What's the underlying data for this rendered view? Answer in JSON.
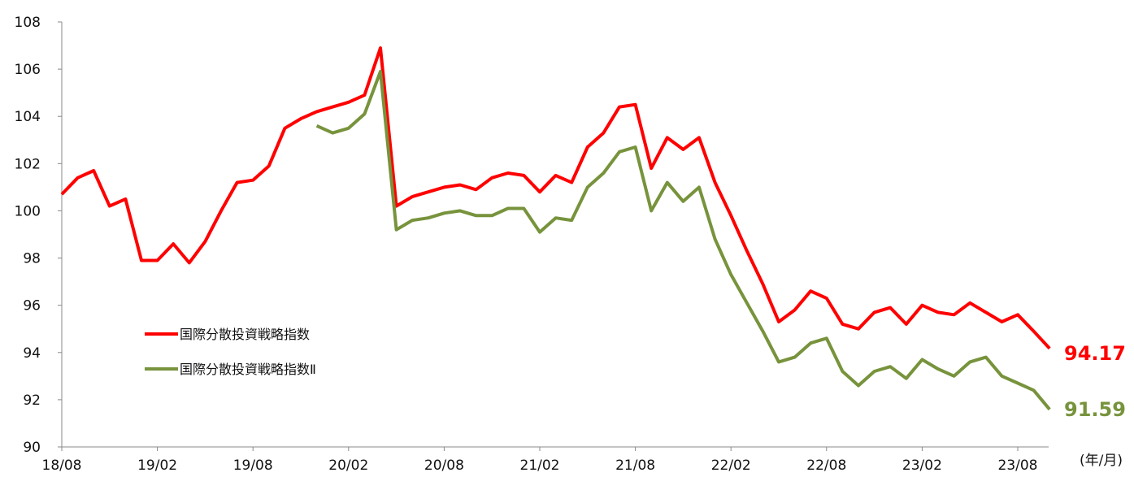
{
  "chart_data": {
    "type": "line",
    "x_unit_label": "(年/月)",
    "x_ticks": [
      "18/08",
      "19/02",
      "19/08",
      "20/02",
      "20/08",
      "21/02",
      "21/08",
      "22/02",
      "22/08",
      "23/02",
      "23/08"
    ],
    "ylim": [
      90,
      108
    ],
    "y_ticks": [
      90,
      92,
      94,
      96,
      98,
      100,
      102,
      104,
      106,
      108
    ],
    "grid": false,
    "legend_position": "lower-left",
    "series": [
      {
        "name": "国際分散投資戦略指数",
        "color": "#ff0000",
        "last_value_label": "94.17",
        "points": [
          [
            "18/08",
            100.7
          ],
          [
            "18/09",
            101.4
          ],
          [
            "18/10",
            101.7
          ],
          [
            "18/11",
            100.2
          ],
          [
            "18/12",
            100.5
          ],
          [
            "19/01",
            97.9
          ],
          [
            "19/02",
            97.9
          ],
          [
            "19/03",
            98.6
          ],
          [
            "19/04",
            97.8
          ],
          [
            "19/05",
            98.7
          ],
          [
            "19/06",
            100.0
          ],
          [
            "19/07",
            101.2
          ],
          [
            "19/08",
            101.3
          ],
          [
            "19/09",
            101.9
          ],
          [
            "19/10",
            103.5
          ],
          [
            "19/11",
            103.9
          ],
          [
            "19/12",
            104.2
          ],
          [
            "20/01",
            104.4
          ],
          [
            "20/02",
            104.6
          ],
          [
            "20/03",
            104.9
          ],
          [
            "20/04",
            106.9
          ],
          [
            "20/05",
            100.2
          ],
          [
            "20/06",
            100.6
          ],
          [
            "20/07",
            100.8
          ],
          [
            "20/08",
            101.0
          ],
          [
            "20/09",
            101.1
          ],
          [
            "20/10",
            100.9
          ],
          [
            "20/11",
            101.4
          ],
          [
            "20/12",
            101.6
          ],
          [
            "21/01",
            101.5
          ],
          [
            "21/02",
            100.8
          ],
          [
            "21/03",
            101.5
          ],
          [
            "21/04",
            101.2
          ],
          [
            "21/05",
            102.7
          ],
          [
            "21/06",
            103.3
          ],
          [
            "21/07",
            104.4
          ],
          [
            "21/08",
            104.5
          ],
          [
            "21/09",
            101.8
          ],
          [
            "21/10",
            103.1
          ],
          [
            "21/11",
            102.6
          ],
          [
            "21/12",
            103.1
          ],
          [
            "22/01",
            101.2
          ],
          [
            "22/02",
            99.8
          ],
          [
            "22/03",
            98.3
          ],
          [
            "22/04",
            96.9
          ],
          [
            "22/05",
            95.3
          ],
          [
            "22/06",
            95.8
          ],
          [
            "22/07",
            96.6
          ],
          [
            "22/08",
            96.3
          ],
          [
            "22/09",
            95.2
          ],
          [
            "22/10",
            95.0
          ],
          [
            "22/11",
            95.7
          ],
          [
            "22/12",
            95.9
          ],
          [
            "23/01",
            95.2
          ],
          [
            "23/02",
            96.0
          ],
          [
            "23/03",
            95.7
          ],
          [
            "23/04",
            95.6
          ],
          [
            "23/05",
            96.1
          ],
          [
            "23/06",
            95.7
          ],
          [
            "23/07",
            95.3
          ],
          [
            "23/08",
            95.6
          ],
          [
            "23/09",
            94.9
          ],
          [
            "23/10",
            94.17
          ]
        ]
      },
      {
        "name": "国際分散投資戦略指数Ⅱ",
        "color": "#77933c",
        "last_value_label": "91.59",
        "points": [
          [
            "19/12",
            103.6
          ],
          [
            "20/01",
            103.3
          ],
          [
            "20/02",
            103.5
          ],
          [
            "20/03",
            104.1
          ],
          [
            "20/04",
            105.9
          ],
          [
            "20/05",
            99.2
          ],
          [
            "20/06",
            99.6
          ],
          [
            "20/07",
            99.7
          ],
          [
            "20/08",
            99.9
          ],
          [
            "20/09",
            100.0
          ],
          [
            "20/10",
            99.8
          ],
          [
            "20/11",
            99.8
          ],
          [
            "20/12",
            100.1
          ],
          [
            "21/01",
            100.1
          ],
          [
            "21/02",
            99.1
          ],
          [
            "21/03",
            99.7
          ],
          [
            "21/04",
            99.6
          ],
          [
            "21/05",
            101.0
          ],
          [
            "21/06",
            101.6
          ],
          [
            "21/07",
            102.5
          ],
          [
            "21/08",
            102.7
          ],
          [
            "21/09",
            100.0
          ],
          [
            "21/10",
            101.2
          ],
          [
            "21/11",
            100.4
          ],
          [
            "21/12",
            101.0
          ],
          [
            "22/01",
            98.8
          ],
          [
            "22/02",
            97.3
          ],
          [
            "22/03",
            96.1
          ],
          [
            "22/04",
            94.9
          ],
          [
            "22/05",
            93.6
          ],
          [
            "22/06",
            93.8
          ],
          [
            "22/07",
            94.4
          ],
          [
            "22/08",
            94.6
          ],
          [
            "22/09",
            93.2
          ],
          [
            "22/10",
            92.6
          ],
          [
            "22/11",
            93.2
          ],
          [
            "22/12",
            93.4
          ],
          [
            "23/01",
            92.9
          ],
          [
            "23/02",
            93.7
          ],
          [
            "23/03",
            93.3
          ],
          [
            "23/04",
            93.0
          ],
          [
            "23/05",
            93.6
          ],
          [
            "23/06",
            93.8
          ],
          [
            "23/07",
            93.0
          ],
          [
            "23/08",
            92.7
          ],
          [
            "23/09",
            92.4
          ],
          [
            "23/10",
            91.59
          ]
        ]
      }
    ]
  }
}
